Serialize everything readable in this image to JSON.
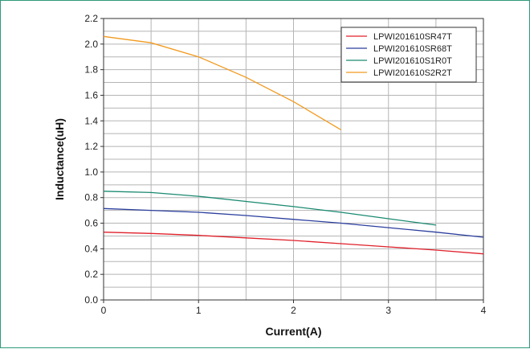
{
  "chart_data": {
    "type": "line",
    "xlabel": "Current(A)",
    "ylabel": "Inductance(uH)",
    "xlim": [
      0,
      4
    ],
    "ylim": [
      0,
      2.2
    ],
    "x_ticks": [
      "0",
      "1",
      "2",
      "3",
      "4"
    ],
    "y_ticks": [
      "0.0",
      "0.2",
      "0.4",
      "0.6",
      "0.8",
      "1.0",
      "1.2",
      "1.4",
      "1.6",
      "1.8",
      "2.0",
      "2.2"
    ],
    "grid": true,
    "legend_position": "top-right",
    "series": [
      {
        "name": "LPWI201610SR47T",
        "color": "#e0202a",
        "x": [
          0,
          0.5,
          1,
          1.5,
          2,
          2.5,
          3,
          3.5,
          4
        ],
        "values": [
          0.53,
          0.52,
          0.505,
          0.485,
          0.465,
          0.44,
          0.415,
          0.39,
          0.36
        ]
      },
      {
        "name": "LPWI201610SR68T",
        "color": "#2b3f9e",
        "x": [
          0,
          0.5,
          1,
          1.5,
          2,
          2.5,
          3,
          3.5,
          4
        ],
        "values": [
          0.715,
          0.7,
          0.685,
          0.66,
          0.63,
          0.6,
          0.565,
          0.53,
          0.49
        ]
      },
      {
        "name": "LPWI201610S1R0T",
        "color": "#1a8a72",
        "x": [
          0,
          0.5,
          1,
          1.5,
          2,
          2.5,
          3,
          3.5
        ],
        "values": [
          0.85,
          0.84,
          0.81,
          0.77,
          0.73,
          0.685,
          0.635,
          0.585
        ]
      },
      {
        "name": "LPWI201610S2R2T",
        "color": "#f29a1e",
        "x": [
          0,
          0.5,
          1,
          1.5,
          2,
          2.5
        ],
        "values": [
          2.06,
          2.01,
          1.9,
          1.74,
          1.55,
          1.33
        ]
      }
    ]
  }
}
